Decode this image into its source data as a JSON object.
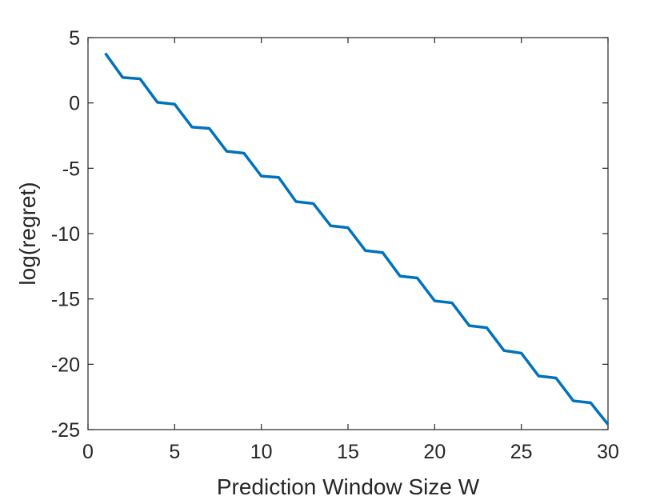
{
  "chart_data": {
    "type": "line",
    "title": "",
    "xlabel": "Prediction Window Size W",
    "ylabel": "log(regret)",
    "xlim": [
      0,
      30
    ],
    "ylim": [
      -25,
      5
    ],
    "xticks": [
      "0",
      "5",
      "10",
      "15",
      "20",
      "25",
      "30"
    ],
    "yticks": [
      "5",
      "0",
      "-5",
      "-10",
      "-15",
      "-20",
      "-25"
    ],
    "grid": false,
    "legend": "none",
    "series": [
      {
        "color": "#0072BD",
        "x": [
          1,
          2,
          3,
          4,
          5,
          6,
          7,
          8,
          9,
          10,
          11,
          12,
          13,
          14,
          15,
          16,
          17,
          18,
          19,
          20,
          21,
          22,
          23,
          24,
          25,
          26,
          27,
          28,
          29,
          30
        ],
        "y": [
          3.8,
          1.95,
          1.85,
          0.05,
          -0.1,
          -1.85,
          -1.95,
          -3.7,
          -3.85,
          -5.6,
          -5.7,
          -7.55,
          -7.7,
          -9.4,
          -9.55,
          -11.3,
          -11.45,
          -13.25,
          -13.4,
          -15.15,
          -15.3,
          -17.05,
          -17.2,
          -18.95,
          -19.15,
          -20.9,
          -21.05,
          -22.8,
          -22.95,
          -24.6
        ]
      }
    ]
  }
}
